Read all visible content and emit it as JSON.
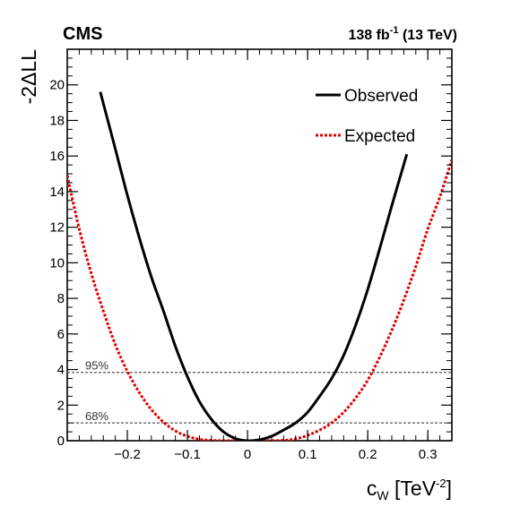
{
  "chart_data": {
    "type": "line",
    "header": {
      "experiment": "CMS",
      "lumi_value": "138 fb",
      "lumi_exp": "-1",
      "lumi_energy": "(13 TeV)"
    },
    "xlabel": {
      "main": "c",
      "sub": "W",
      "unit": "[TeV",
      "unit_exp": "-2",
      "unit_close": "]"
    },
    "ylabel": "-2ΔLL",
    "xlim": [
      -0.3,
      0.34
    ],
    "ylim": [
      0,
      22
    ],
    "xticks": [
      -0.2,
      -0.1,
      0,
      0.1,
      0.2,
      0.3
    ],
    "xtick_labels": [
      "−0.2",
      "−0.1",
      "0",
      "0.1",
      "0.2",
      "0.3"
    ],
    "yticks": [
      0,
      2,
      4,
      6,
      8,
      10,
      12,
      14,
      16,
      18,
      20
    ],
    "ytick_labels": [
      "0",
      "2",
      "4",
      "6",
      "8",
      "10",
      "12",
      "14",
      "16",
      "18",
      "20"
    ],
    "legend_position": "top-right",
    "thresholds": [
      {
        "y": 1.0,
        "label": "68%"
      },
      {
        "y": 3.84,
        "label": "95%"
      }
    ],
    "series": [
      {
        "name": "Observed",
        "color": "#000000",
        "style": "solid",
        "x": [
          -0.245,
          -0.22,
          -0.2,
          -0.18,
          -0.16,
          -0.14,
          -0.12,
          -0.1,
          -0.08,
          -0.06,
          -0.04,
          -0.02,
          0.0,
          0.02,
          0.04,
          0.06,
          0.08,
          0.1,
          0.12,
          0.14,
          0.16,
          0.18,
          0.2,
          0.22,
          0.24,
          0.265
        ],
        "y": [
          19.6,
          16.4,
          13.8,
          11.4,
          9.2,
          7.3,
          5.3,
          3.6,
          2.2,
          1.2,
          0.5,
          0.12,
          0.0,
          0.05,
          0.25,
          0.6,
          1.0,
          1.6,
          2.5,
          3.5,
          4.8,
          6.5,
          8.5,
          10.8,
          13.2,
          16.1
        ]
      },
      {
        "name": "Expected",
        "color": "#e00000",
        "style": "dotted",
        "x": [
          -0.3,
          -0.28,
          -0.26,
          -0.24,
          -0.22,
          -0.2,
          -0.18,
          -0.16,
          -0.14,
          -0.12,
          -0.1,
          -0.08,
          -0.06,
          -0.04,
          -0.02,
          0.0,
          0.02,
          0.04,
          0.06,
          0.08,
          0.1,
          0.12,
          0.14,
          0.16,
          0.18,
          0.2,
          0.22,
          0.24,
          0.26,
          0.28,
          0.3,
          0.32,
          0.34
        ],
        "y": [
          14.9,
          11.9,
          9.4,
          7.3,
          5.4,
          3.9,
          2.7,
          1.75,
          1.05,
          0.55,
          0.25,
          0.08,
          0.02,
          0.0,
          0.0,
          0.0,
          0.0,
          0.0,
          0.02,
          0.1,
          0.3,
          0.6,
          1.0,
          1.6,
          2.4,
          3.4,
          4.7,
          6.2,
          7.9,
          9.8,
          11.9,
          13.7,
          15.8
        ]
      }
    ]
  }
}
